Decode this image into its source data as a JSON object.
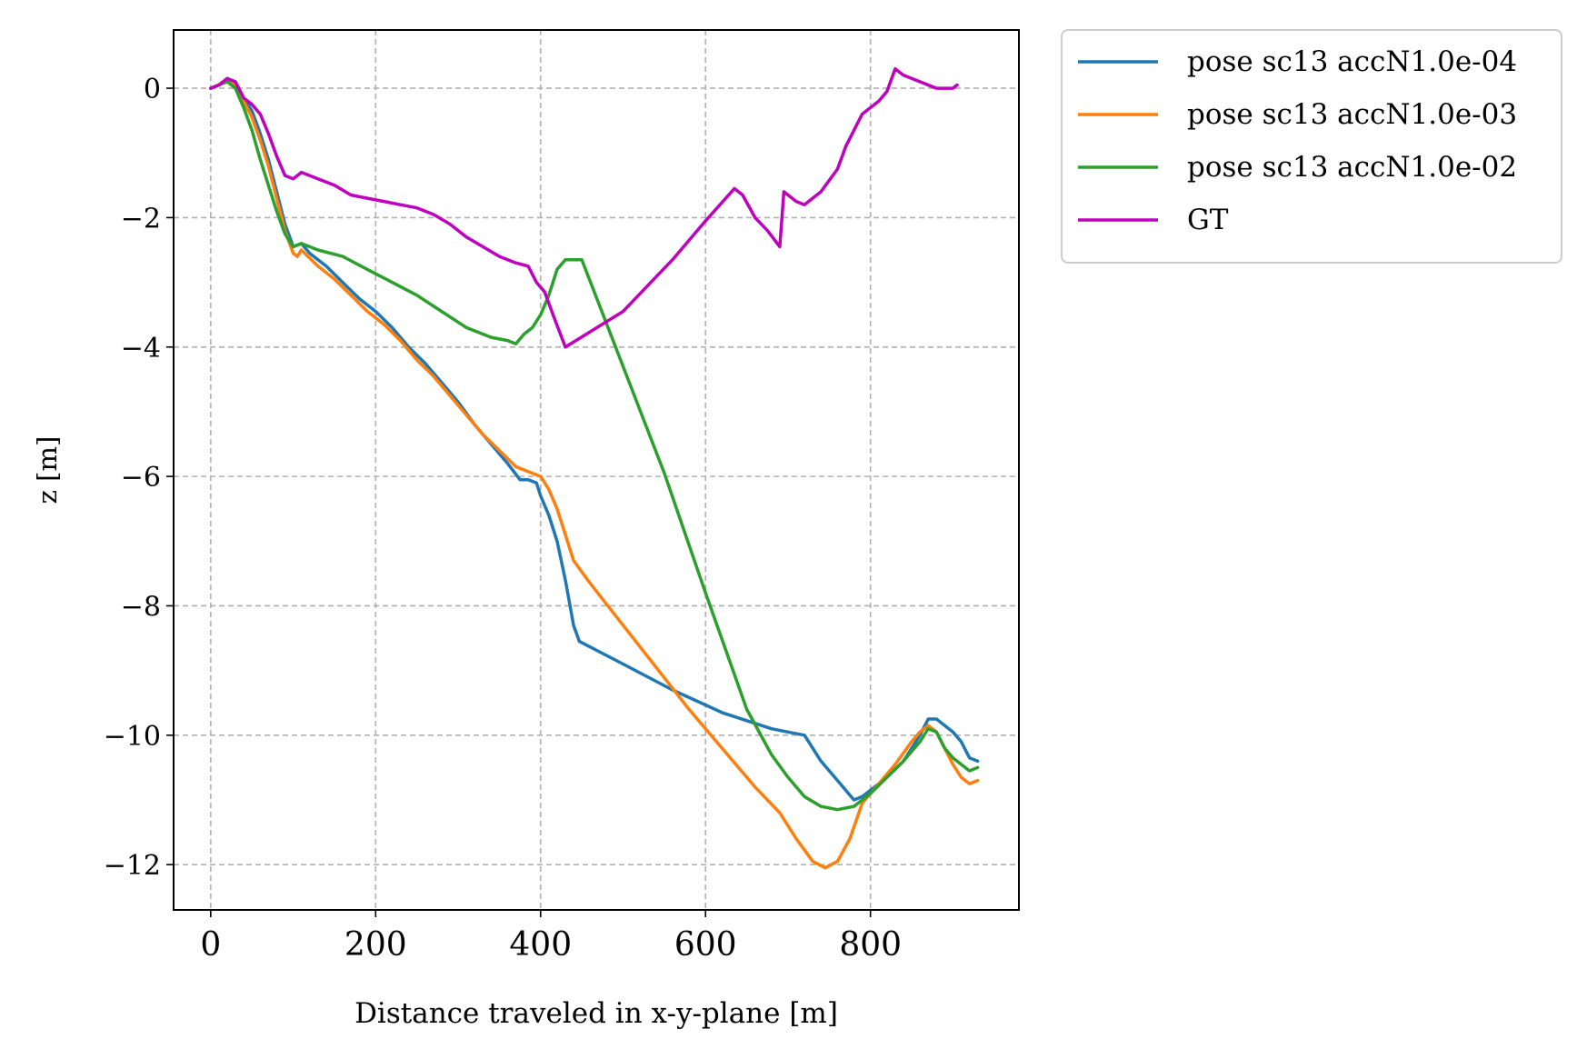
{
  "chart_data": {
    "type": "line",
    "title": "",
    "xlabel": "Distance traveled in x-y-plane [m]",
    "ylabel": "z [m]",
    "xlim": [
      -45,
      980
    ],
    "ylim": [
      -12.7,
      0.9
    ],
    "xticks": [
      0,
      200,
      400,
      600,
      800
    ],
    "yticks": [
      0,
      -2,
      -4,
      -6,
      -8,
      -10,
      -12
    ],
    "xtick_labels": [
      "0",
      "200",
      "400",
      "600",
      "800"
    ],
    "ytick_labels": [
      "0",
      "−2",
      "−4",
      "−6",
      "−8",
      "−10",
      "−12"
    ],
    "grid": true,
    "grid_style": "dashed",
    "legend_position": "outside-top-right",
    "series": [
      {
        "name": "pose sc13 accN1.0e-04",
        "color": "#1f77b4",
        "points": [
          [
            0,
            0
          ],
          [
            10,
            0.05
          ],
          [
            20,
            0.15
          ],
          [
            30,
            0.05
          ],
          [
            40,
            -0.15
          ],
          [
            50,
            -0.35
          ],
          [
            60,
            -0.7
          ],
          [
            70,
            -1.1
          ],
          [
            80,
            -1.6
          ],
          [
            90,
            -2.1
          ],
          [
            100,
            -2.45
          ],
          [
            110,
            -2.4
          ],
          [
            120,
            -2.55
          ],
          [
            140,
            -2.75
          ],
          [
            160,
            -3.0
          ],
          [
            180,
            -3.25
          ],
          [
            200,
            -3.45
          ],
          [
            220,
            -3.7
          ],
          [
            240,
            -4.0
          ],
          [
            260,
            -4.25
          ],
          [
            280,
            -4.55
          ],
          [
            300,
            -4.85
          ],
          [
            320,
            -5.2
          ],
          [
            340,
            -5.5
          ],
          [
            360,
            -5.8
          ],
          [
            375,
            -6.05
          ],
          [
            385,
            -6.05
          ],
          [
            395,
            -6.1
          ],
          [
            400,
            -6.3
          ],
          [
            410,
            -6.6
          ],
          [
            420,
            -7.0
          ],
          [
            430,
            -7.6
          ],
          [
            440,
            -8.3
          ],
          [
            447,
            -8.55
          ],
          [
            500,
            -8.9
          ],
          [
            560,
            -9.3
          ],
          [
            620,
            -9.65
          ],
          [
            680,
            -9.9
          ],
          [
            700,
            -9.95
          ],
          [
            720,
            -10.0
          ],
          [
            740,
            -10.4
          ],
          [
            760,
            -10.7
          ],
          [
            780,
            -11.0
          ],
          [
            790,
            -10.95
          ],
          [
            800,
            -10.85
          ],
          [
            820,
            -10.65
          ],
          [
            840,
            -10.4
          ],
          [
            860,
            -10.0
          ],
          [
            870,
            -9.75
          ],
          [
            880,
            -9.75
          ],
          [
            890,
            -9.85
          ],
          [
            900,
            -9.95
          ],
          [
            910,
            -10.1
          ],
          [
            920,
            -10.35
          ],
          [
            930,
            -10.4
          ]
        ]
      },
      {
        "name": "pose sc13 accN1.0e-03",
        "color": "#ff7f0e",
        "points": [
          [
            0,
            0
          ],
          [
            10,
            0.05
          ],
          [
            20,
            0.15
          ],
          [
            30,
            0.05
          ],
          [
            40,
            -0.2
          ],
          [
            50,
            -0.45
          ],
          [
            60,
            -0.8
          ],
          [
            70,
            -1.2
          ],
          [
            80,
            -1.7
          ],
          [
            90,
            -2.2
          ],
          [
            100,
            -2.55
          ],
          [
            105,
            -2.6
          ],
          [
            110,
            -2.5
          ],
          [
            130,
            -2.75
          ],
          [
            150,
            -2.95
          ],
          [
            170,
            -3.2
          ],
          [
            190,
            -3.45
          ],
          [
            210,
            -3.65
          ],
          [
            230,
            -3.9
          ],
          [
            250,
            -4.2
          ],
          [
            270,
            -4.45
          ],
          [
            290,
            -4.75
          ],
          [
            310,
            -5.05
          ],
          [
            330,
            -5.35
          ],
          [
            350,
            -5.6
          ],
          [
            370,
            -5.85
          ],
          [
            390,
            -5.95
          ],
          [
            400,
            -6.0
          ],
          [
            410,
            -6.2
          ],
          [
            420,
            -6.5
          ],
          [
            430,
            -6.9
          ],
          [
            440,
            -7.3
          ],
          [
            460,
            -7.65
          ],
          [
            500,
            -8.3
          ],
          [
            540,
            -8.95
          ],
          [
            580,
            -9.6
          ],
          [
            620,
            -10.2
          ],
          [
            660,
            -10.8
          ],
          [
            690,
            -11.2
          ],
          [
            710,
            -11.6
          ],
          [
            730,
            -11.95
          ],
          [
            745,
            -12.05
          ],
          [
            760,
            -11.95
          ],
          [
            775,
            -11.6
          ],
          [
            790,
            -11.05
          ],
          [
            810,
            -10.75
          ],
          [
            830,
            -10.45
          ],
          [
            850,
            -10.1
          ],
          [
            860,
            -9.95
          ],
          [
            870,
            -9.85
          ],
          [
            880,
            -9.95
          ],
          [
            890,
            -10.2
          ],
          [
            900,
            -10.45
          ],
          [
            910,
            -10.65
          ],
          [
            920,
            -10.75
          ],
          [
            930,
            -10.7
          ]
        ]
      },
      {
        "name": "pose sc13 accN1.0e-02",
        "color": "#2ca02c",
        "points": [
          [
            0,
            0
          ],
          [
            10,
            0.05
          ],
          [
            20,
            0.1
          ],
          [
            30,
            0.0
          ],
          [
            40,
            -0.3
          ],
          [
            50,
            -0.65
          ],
          [
            60,
            -1.1
          ],
          [
            70,
            -1.5
          ],
          [
            80,
            -1.9
          ],
          [
            90,
            -2.25
          ],
          [
            100,
            -2.45
          ],
          [
            110,
            -2.4
          ],
          [
            130,
            -2.5
          ],
          [
            160,
            -2.6
          ],
          [
            190,
            -2.8
          ],
          [
            220,
            -3.0
          ],
          [
            250,
            -3.2
          ],
          [
            280,
            -3.45
          ],
          [
            310,
            -3.7
          ],
          [
            340,
            -3.85
          ],
          [
            360,
            -3.9
          ],
          [
            370,
            -3.95
          ],
          [
            380,
            -3.8
          ],
          [
            390,
            -3.7
          ],
          [
            400,
            -3.5
          ],
          [
            410,
            -3.2
          ],
          [
            420,
            -2.8
          ],
          [
            430,
            -2.65
          ],
          [
            440,
            -2.65
          ],
          [
            450,
            -2.65
          ],
          [
            500,
            -4.3
          ],
          [
            550,
            -5.95
          ],
          [
            600,
            -7.8
          ],
          [
            650,
            -9.6
          ],
          [
            680,
            -10.3
          ],
          [
            700,
            -10.65
          ],
          [
            720,
            -10.95
          ],
          [
            740,
            -11.1
          ],
          [
            760,
            -11.15
          ],
          [
            780,
            -11.1
          ],
          [
            800,
            -10.9
          ],
          [
            820,
            -10.65
          ],
          [
            840,
            -10.4
          ],
          [
            860,
            -10.1
          ],
          [
            870,
            -9.9
          ],
          [
            880,
            -9.95
          ],
          [
            890,
            -10.2
          ],
          [
            900,
            -10.35
          ],
          [
            910,
            -10.45
          ],
          [
            920,
            -10.55
          ],
          [
            930,
            -10.5
          ]
        ]
      },
      {
        "name": "GT",
        "color": "#bf00bf",
        "points": [
          [
            0,
            0
          ],
          [
            10,
            0.05
          ],
          [
            20,
            0.15
          ],
          [
            30,
            0.1
          ],
          [
            40,
            -0.15
          ],
          [
            50,
            -0.25
          ],
          [
            60,
            -0.4
          ],
          [
            70,
            -0.7
          ],
          [
            80,
            -1.05
          ],
          [
            90,
            -1.35
          ],
          [
            100,
            -1.4
          ],
          [
            110,
            -1.3
          ],
          [
            130,
            -1.4
          ],
          [
            150,
            -1.5
          ],
          [
            170,
            -1.65
          ],
          [
            190,
            -1.7
          ],
          [
            210,
            -1.75
          ],
          [
            230,
            -1.8
          ],
          [
            250,
            -1.85
          ],
          [
            270,
            -1.95
          ],
          [
            290,
            -2.1
          ],
          [
            310,
            -2.3
          ],
          [
            330,
            -2.45
          ],
          [
            350,
            -2.6
          ],
          [
            370,
            -2.7
          ],
          [
            385,
            -2.75
          ],
          [
            395,
            -3.0
          ],
          [
            405,
            -3.15
          ],
          [
            415,
            -3.5
          ],
          [
            430,
            -4.0
          ],
          [
            500,
            -3.45
          ],
          [
            560,
            -2.65
          ],
          [
            600,
            -2.05
          ],
          [
            635,
            -1.55
          ],
          [
            645,
            -1.65
          ],
          [
            660,
            -2.0
          ],
          [
            675,
            -2.2
          ],
          [
            690,
            -2.45
          ],
          [
            695,
            -1.6
          ],
          [
            710,
            -1.75
          ],
          [
            720,
            -1.8
          ],
          [
            740,
            -1.6
          ],
          [
            760,
            -1.25
          ],
          [
            770,
            -0.9
          ],
          [
            790,
            -0.4
          ],
          [
            810,
            -0.2
          ],
          [
            820,
            -0.05
          ],
          [
            830,
            0.3
          ],
          [
            840,
            0.2
          ],
          [
            860,
            0.1
          ],
          [
            880,
            0.0
          ],
          [
            900,
            0.0
          ],
          [
            905,
            0.05
          ]
        ]
      }
    ]
  }
}
